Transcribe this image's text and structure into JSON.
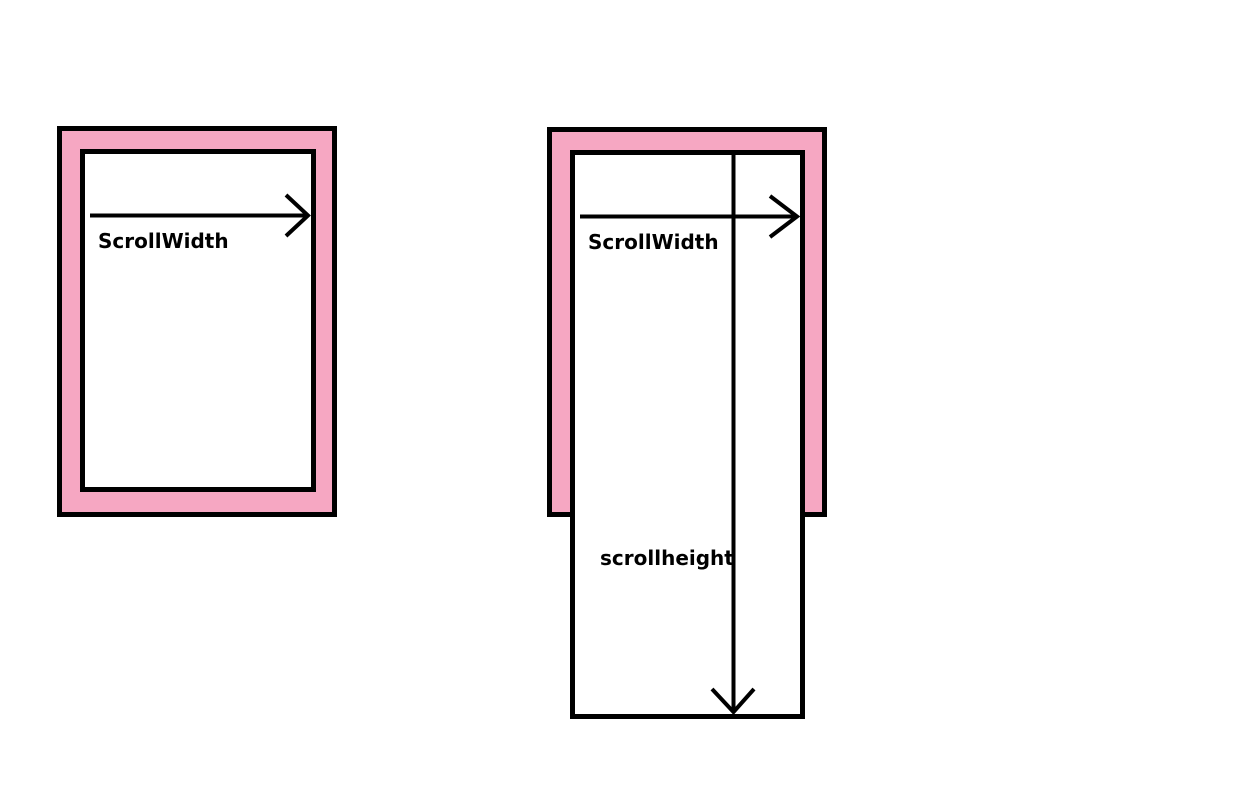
{
  "colors": {
    "border_fill": "#f6a7c2",
    "stroke": "#000000",
    "background": "#ffffff"
  },
  "diagram_1": {
    "width_label": "ScrollWidth"
  },
  "diagram_2": {
    "width_label": "ScrollWidth",
    "height_label": "scrollheight"
  }
}
